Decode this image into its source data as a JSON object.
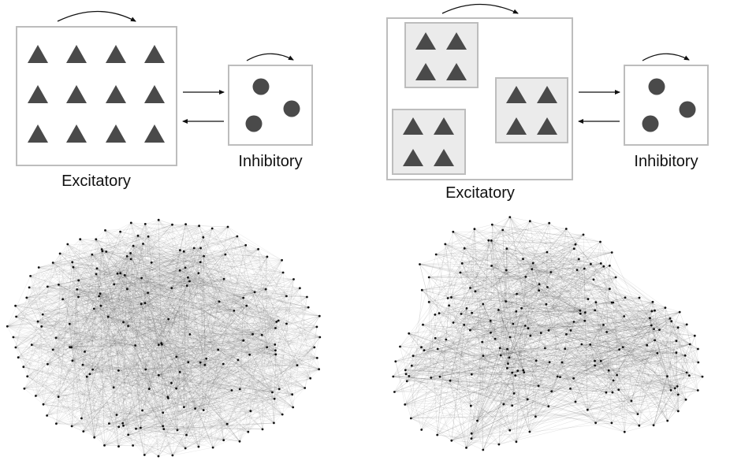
{
  "panels": {
    "uniform": {
      "excitatory_label": "Excitatory",
      "inhibitory_label": "Inhibitory"
    },
    "clustered": {
      "excitatory_label": "Excitatory",
      "inhibitory_label": "Inhibitory"
    }
  },
  "colors": {
    "node_fill": "#4a4a4a",
    "box_stroke": "#bdbdbd",
    "cluster_fill": "#ebebeb",
    "edge_color": "#3c3c3c",
    "arrow_color": "#111111"
  },
  "icons": {
    "excitatory_neuron": "triangle-icon",
    "inhibitory_neuron": "circle-icon"
  }
}
